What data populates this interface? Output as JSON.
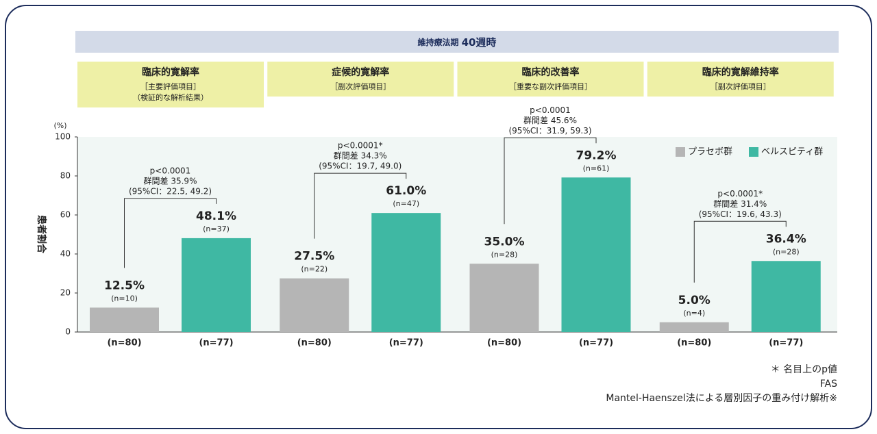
{
  "chart_data": {
    "type": "bar",
    "banner": [
      "維持療法期",
      "40週時"
    ],
    "y_unit": "(%)",
    "ylabel": "患者割合",
    "ylim": [
      0,
      100
    ],
    "yticks": [
      0,
      20,
      40,
      60,
      80,
      100
    ],
    "legend": "upper right",
    "categories": [
      "臨床的寛解率",
      "症候的寛解率",
      "臨床的改善率",
      "臨床的寛解維持率"
    ],
    "category_notes": [
      [
        "［主要評価項目］",
        "（検証的な解析結果）"
      ],
      [
        "［副次評価項目］"
      ],
      [
        "［重要な副次評価項目］"
      ],
      [
        "［副次評価項目］"
      ]
    ],
    "series": [
      {
        "name": "プラセボ群",
        "color": "#b5b5b5",
        "values": [
          12.5,
          27.5,
          35.0,
          5.0
        ],
        "value_labels": [
          "12.5%",
          "27.5%",
          "35.0%",
          "5.0%"
        ],
        "counts": [
          "(n=10)",
          "(n=22)",
          "(n=28)",
          "(n=4)"
        ],
        "totals": [
          "(n=80)",
          "(n=80)",
          "(n=80)",
          "(n=80)"
        ]
      },
      {
        "name": "ベルスピティ群",
        "color": "#3fb8a3",
        "values": [
          48.1,
          61.0,
          79.2,
          36.4
        ],
        "value_labels": [
          "48.1%",
          "61.0%",
          "79.2%",
          "36.4%"
        ],
        "counts": [
          "(n=37)",
          "(n=47)",
          "(n=61)",
          "(n=28)"
        ],
        "totals": [
          "(n=77)",
          "(n=77)",
          "(n=77)",
          "(n=77)"
        ]
      }
    ],
    "annotations": [
      [
        "p<0.0001",
        "群間差 35.9%",
        "(95%CI：22.5, 49.2)"
      ],
      [
        "p<0.0001*",
        "群間差 34.3%",
        "(95%CI：19.7, 49.0)"
      ],
      [
        "p<0.0001",
        "群間差 45.6%",
        "(95%CI：31.9, 59.3)"
      ],
      [
        "p<0.0001*",
        "群間差 31.4%",
        "(95%CI：19.6, 43.3)"
      ]
    ],
    "footnotes": [
      "＊ 名目上のp値",
      "FAS",
      "Mantel-Haenszel法による層別因子の重み付け解析※"
    ]
  }
}
